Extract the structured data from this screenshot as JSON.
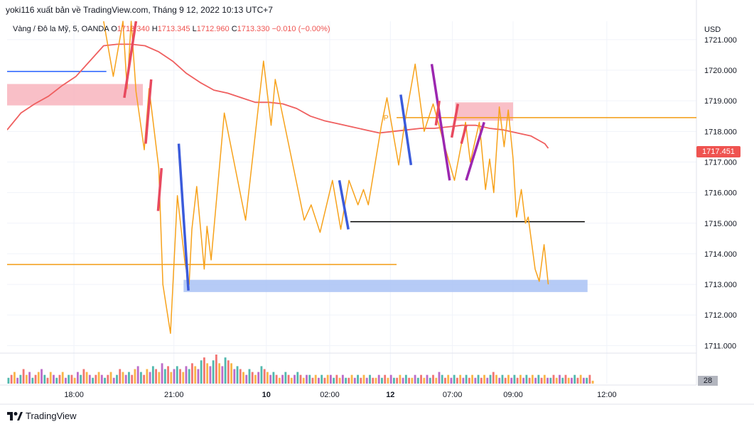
{
  "header": {
    "publisher_text": "yoki116 xuất bản về TradingView.com, Tháng 9 12, 2022 10:13 UTC+7"
  },
  "legend": {
    "symbol": "Vàng / Đô la Mỹ, 5, OANDA",
    "open_label": "O",
    "open": "1713.340",
    "high_label": "H",
    "high": "1713.345",
    "low_label": "L",
    "low": "1712.960",
    "close_label": "C",
    "close": "1713.330",
    "change": "−0.010 (−0.00%)"
  },
  "price_axis": {
    "currency": "USD"
  },
  "last_price_badge": "1717.451",
  "volume_badge": "28",
  "footer": {
    "brand": "TradingView"
  },
  "annotation_p": "P",
  "colors": {
    "price_line": "#f7a21b",
    "ma_line": "#ef5f5f",
    "red_marker": "#e84a5f",
    "blue_marker": "#3b5bdb",
    "purple_marker": "#9c27b0",
    "pink_zone": "#f8b4bd",
    "blue_zone": "#a9c2f5",
    "orange_level": "#f39c12",
    "blue_level": "#2962ff",
    "black_level": "#000000"
  },
  "chart_data": {
    "type": "line",
    "ylim": [
      1710.8,
      1721.6
    ],
    "y_ticks": [
      1711,
      1712,
      1713,
      1714,
      1715,
      1716,
      1717,
      1718,
      1719,
      1720,
      1721
    ],
    "y_tick_labels": [
      "1711.000",
      "1712.000",
      "1713.000",
      "1714.000",
      "1715.000",
      "1716.000",
      "1717.000",
      "1718.000",
      "1719.000",
      "1720.000",
      "1721.000"
    ],
    "x_tick_labels": [
      "18:00",
      "21:00",
      "10",
      "02:00",
      "12",
      "07:00",
      "09:00",
      "12:00"
    ],
    "xlim": [
      0,
      100
    ],
    "x_ticks": [
      9.7,
      24.2,
      37.6,
      46.8,
      55.6,
      64.6,
      73.4,
      87.0
    ],
    "series": [
      {
        "values": [
          [
            14.0,
            1721.6
          ],
          [
            15.4,
            1719.8
          ],
          [
            16.8,
            1721.6
          ],
          [
            17.4,
            1719.4
          ],
          [
            18.0,
            1721.6
          ],
          [
            18.7,
            1719.3
          ],
          [
            19.9,
            1717.4
          ],
          [
            20.6,
            1719.4
          ],
          [
            22.0,
            1716.8
          ],
          [
            22.6,
            1713.0
          ],
          [
            23.7,
            1711.4
          ],
          [
            24.7,
            1715.9
          ],
          [
            25.8,
            1713.7
          ],
          [
            26.4,
            1713.0
          ],
          [
            26.8,
            1714.8
          ],
          [
            27.5,
            1716.2
          ],
          [
            28.6,
            1713.5
          ],
          [
            29.0,
            1714.9
          ],
          [
            29.6,
            1713.8
          ],
          [
            31.5,
            1718.6
          ],
          [
            34.6,
            1715.1
          ],
          [
            37.2,
            1720.3
          ],
          [
            38.3,
            1718.2
          ],
          [
            38.9,
            1719.7
          ],
          [
            42.1,
            1716.2
          ],
          [
            43.1,
            1715.1
          ],
          [
            44.1,
            1715.6
          ],
          [
            45.4,
            1714.7
          ],
          [
            47.2,
            1716.4
          ],
          [
            48.4,
            1714.8
          ],
          [
            49.6,
            1716.4
          ],
          [
            50.9,
            1715.6
          ],
          [
            51.7,
            1716.1
          ],
          [
            52.4,
            1715.6
          ],
          [
            54.3,
            1718.2
          ],
          [
            55.1,
            1719.1
          ],
          [
            56.8,
            1716.9
          ],
          [
            57.7,
            1718.3
          ],
          [
            59.2,
            1720.2
          ],
          [
            60.5,
            1718.0
          ],
          [
            61.8,
            1718.9
          ],
          [
            63.5,
            1717.5
          ],
          [
            64.9,
            1716.4
          ],
          [
            66.5,
            1718.3
          ],
          [
            67.2,
            1717.0
          ],
          [
            68.5,
            1718.3
          ],
          [
            69.4,
            1716.1
          ],
          [
            70.0,
            1717.1
          ],
          [
            70.6,
            1716.0
          ],
          [
            71.4,
            1718.8
          ],
          [
            72.1,
            1717.5
          ],
          [
            72.7,
            1718.7
          ],
          [
            73.4,
            1717.1
          ],
          [
            73.9,
            1715.2
          ],
          [
            74.6,
            1716.1
          ],
          [
            75.2,
            1715.0
          ],
          [
            75.6,
            1715.2
          ],
          [
            76.6,
            1713.5
          ],
          [
            77.2,
            1713.1
          ],
          [
            77.9,
            1714.3
          ],
          [
            78.5,
            1713.0
          ]
        ]
      },
      {
        "values": [
          [
            0.0,
            1718.05
          ],
          [
            2.0,
            1718.6
          ],
          [
            4.0,
            1718.9
          ],
          [
            6.0,
            1719.15
          ],
          [
            8.0,
            1719.5
          ],
          [
            10.0,
            1719.8
          ],
          [
            12.0,
            1720.3
          ],
          [
            14.0,
            1720.8
          ],
          [
            16.0,
            1720.85
          ],
          [
            18.0,
            1720.85
          ],
          [
            20.0,
            1720.8
          ],
          [
            22.0,
            1720.6
          ],
          [
            24.0,
            1720.3
          ],
          [
            26.0,
            1719.9
          ],
          [
            28.0,
            1719.6
          ],
          [
            30.0,
            1719.35
          ],
          [
            32.0,
            1719.25
          ],
          [
            34.0,
            1719.1
          ],
          [
            36.0,
            1718.95
          ],
          [
            38.0,
            1718.95
          ],
          [
            40.0,
            1718.9
          ],
          [
            42.0,
            1718.75
          ],
          [
            44.0,
            1718.5
          ],
          [
            46.0,
            1718.35
          ],
          [
            48.0,
            1718.25
          ],
          [
            50.0,
            1718.15
          ],
          [
            52.0,
            1718.05
          ],
          [
            54.0,
            1717.95
          ],
          [
            56.0,
            1718.0
          ],
          [
            58.0,
            1718.05
          ],
          [
            60.0,
            1718.1
          ],
          [
            62.0,
            1718.1
          ],
          [
            64.0,
            1718.15
          ],
          [
            66.0,
            1718.2
          ],
          [
            68.0,
            1718.2
          ],
          [
            70.0,
            1718.1
          ],
          [
            72.0,
            1718.05
          ],
          [
            74.0,
            1717.95
          ],
          [
            76.0,
            1717.85
          ],
          [
            78.0,
            1717.6
          ],
          [
            78.5,
            1717.45
          ]
        ]
      }
    ],
    "volume": [
      2,
      3,
      4,
      2,
      3,
      5,
      3,
      4,
      2,
      3,
      4,
      5,
      3,
      2,
      4,
      3,
      2,
      3,
      4,
      2,
      3,
      3,
      2,
      4,
      3,
      5,
      4,
      3,
      2,
      3,
      4,
      3,
      2,
      3,
      4,
      2,
      3,
      5,
      4,
      3,
      4,
      3,
      5,
      6,
      4,
      3,
      5,
      4,
      6,
      5,
      4,
      7,
      5,
      6,
      4,
      5,
      6,
      5,
      4,
      6,
      5,
      7,
      6,
      5,
      8,
      9,
      7,
      6,
      8,
      10,
      7,
      6,
      9,
      8,
      7,
      5,
      6,
      5,
      4,
      3,
      5,
      4,
      3,
      4,
      6,
      5,
      4,
      3,
      4,
      3,
      2,
      3,
      4,
      3,
      2,
      3,
      4,
      3,
      2,
      3,
      3,
      2,
      3,
      2,
      3,
      2,
      3,
      3,
      2,
      3,
      2,
      3,
      2,
      2,
      3,
      2,
      3,
      2,
      3,
      2,
      3,
      2,
      2,
      3,
      2,
      3,
      2,
      3,
      2,
      2,
      3,
      2,
      3,
      2,
      2,
      3,
      2,
      3,
      2,
      3,
      2,
      3,
      2,
      4,
      3,
      2,
      3,
      2,
      3,
      2,
      3,
      2,
      3,
      2,
      3,
      2,
      3,
      2,
      3,
      2,
      3,
      4,
      3,
      2,
      3,
      2,
      3,
      2,
      3,
      2,
      3,
      2,
      3,
      2,
      3,
      2,
      3,
      2,
      3,
      2,
      2,
      3,
      2,
      3,
      2,
      3,
      2,
      2,
      3,
      2,
      3,
      2,
      2,
      3,
      1
    ],
    "levels": [
      {
        "y": 1719.96,
        "x1": 0.0,
        "x2": 14.4,
        "color": "blue_level"
      },
      {
        "y": 1713.65,
        "x1": 0.0,
        "x2": 56.5,
        "color": "orange_level"
      },
      {
        "y": 1718.45,
        "x1": 56.5,
        "x2": 100.0,
        "color": "orange_level"
      },
      {
        "y": 1715.05,
        "x1": 49.8,
        "x2": 83.8,
        "color": "black_level"
      }
    ],
    "zones": [
      {
        "y1": 1718.85,
        "y2": 1719.55,
        "x1": 0.0,
        "x2": 19.7,
        "color": "pink_zone"
      },
      {
        "y1": 1718.35,
        "y2": 1718.95,
        "x1": 65.0,
        "x2": 73.4,
        "color": "pink_zone"
      },
      {
        "y1": 1712.75,
        "y2": 1713.15,
        "x1": 25.6,
        "x2": 84.2,
        "color": "blue_zone"
      }
    ],
    "markers": [
      {
        "x1": 17.0,
        "y1": 1719.1,
        "x2": 18.7,
        "y2": 1721.6,
        "color": "red_marker"
      },
      {
        "x1": 20.1,
        "y1": 1717.6,
        "x2": 20.9,
        "y2": 1719.7,
        "color": "red_marker"
      },
      {
        "x1": 21.9,
        "y1": 1715.4,
        "x2": 22.4,
        "y2": 1716.8,
        "color": "red_marker"
      },
      {
        "x1": 24.9,
        "y1": 1717.6,
        "x2": 26.3,
        "y2": 1712.8,
        "color": "blue_marker"
      },
      {
        "x1": 48.2,
        "y1": 1716.4,
        "x2": 49.5,
        "y2": 1714.8,
        "color": "blue_marker"
      },
      {
        "x1": 57.1,
        "y1": 1719.2,
        "x2": 58.6,
        "y2": 1716.9,
        "color": "blue_marker"
      },
      {
        "x1": 61.6,
        "y1": 1720.2,
        "x2": 64.2,
        "y2": 1716.4,
        "color": "purple_marker"
      },
      {
        "x1": 62.2,
        "y1": 1718.2,
        "x2": 62.7,
        "y2": 1719.0,
        "color": "red_marker"
      },
      {
        "x1": 64.5,
        "y1": 1717.8,
        "x2": 65.4,
        "y2": 1718.9,
        "color": "red_marker"
      },
      {
        "x1": 65.9,
        "y1": 1717.6,
        "x2": 66.6,
        "y2": 1718.2,
        "color": "red_marker"
      },
      {
        "x1": 66.6,
        "y1": 1716.4,
        "x2": 69.2,
        "y2": 1718.3,
        "color": "purple_marker"
      }
    ],
    "p_marker": {
      "x": 55.0,
      "y": 1718.45
    }
  }
}
